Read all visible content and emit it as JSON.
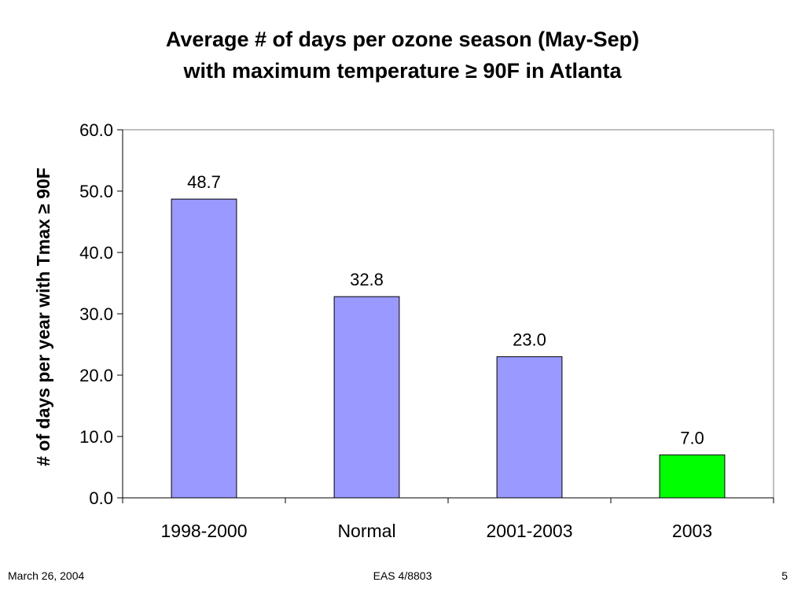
{
  "title_line1": "Average # of days per ozone season (May-Sep)",
  "title_line2": "with maximum temperature ≥ 90F in Atlanta",
  "footer": {
    "date": "March 26, 2004",
    "course": "EAS 4/8803",
    "page": "5"
  },
  "chart_data": {
    "type": "bar",
    "title": "Average # of days per ozone season (May-Sep) with maximum temperature ≥ 90F in Atlanta",
    "xlabel": "",
    "ylabel": "# of days per year with Tmax ≥ 90F",
    "categories": [
      "1998-2000",
      "Normal",
      "2001-2003",
      "2003"
    ],
    "values": [
      48.7,
      32.8,
      23.0,
      7.0
    ],
    "value_labels": [
      "48.7",
      "32.8",
      "23.0",
      "7.0"
    ],
    "colors": [
      "#9999ff",
      "#9999ff",
      "#9999ff",
      "#00ff00"
    ],
    "ylim": [
      0,
      60
    ],
    "yticks": [
      "0.0",
      "10.0",
      "20.0",
      "30.0",
      "40.0",
      "50.0",
      "60.0"
    ],
    "grid": false,
    "legend": "none"
  }
}
